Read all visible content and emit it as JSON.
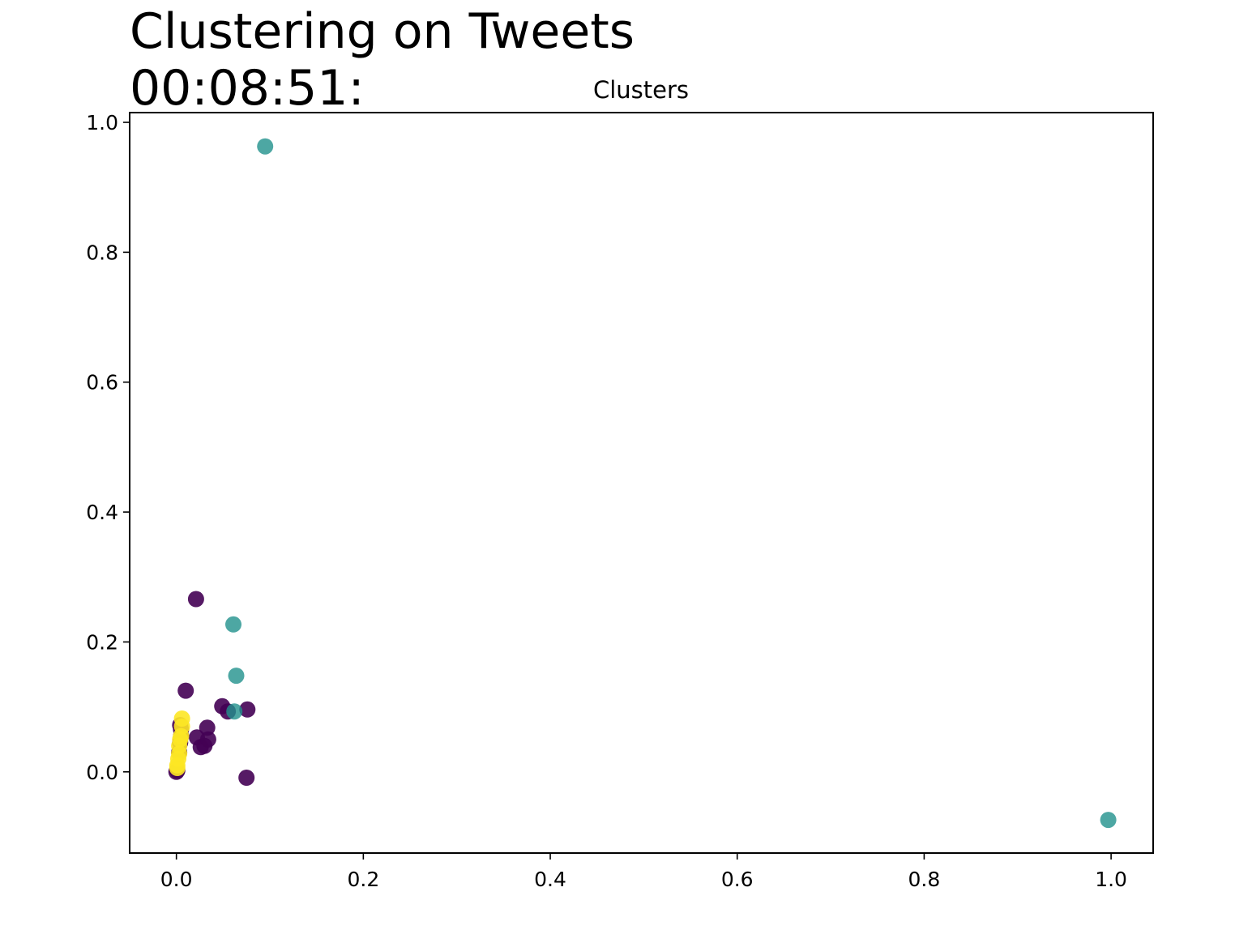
{
  "figure": {
    "title_line1": "Clustering on Tweets",
    "title_line2": "00:08:51:"
  },
  "chart_data": {
    "type": "scatter",
    "title": "Clusters",
    "xlabel": "",
    "ylabel": "",
    "xlim": [
      -0.05,
      1.045
    ],
    "ylim": [
      -0.125,
      1.015
    ],
    "xticks": [
      "0.0",
      "0.2",
      "0.4",
      "0.6",
      "0.8",
      "1.0"
    ],
    "yticks": [
      "0.0",
      "0.2",
      "0.4",
      "0.6",
      "0.8",
      "1.0"
    ],
    "grid": false,
    "legend": "none",
    "series": [
      {
        "color": "#440154",
        "points": [
          [
            0.0,
            0.0
          ],
          [
            0.001,
            0.002
          ],
          [
            0.003,
            0.03
          ],
          [
            0.004,
            0.045
          ],
          [
            0.005,
            0.055
          ],
          [
            0.005,
            0.065
          ],
          [
            0.004,
            0.072
          ],
          [
            0.01,
            0.125
          ],
          [
            0.021,
            0.266
          ],
          [
            0.022,
            0.053
          ],
          [
            0.026,
            0.038
          ],
          [
            0.03,
            0.04
          ],
          [
            0.034,
            0.05
          ],
          [
            0.033,
            0.068
          ],
          [
            0.049,
            0.101
          ],
          [
            0.055,
            0.093
          ],
          [
            0.076,
            0.096
          ],
          [
            0.075,
            -0.009
          ]
        ]
      },
      {
        "color": "#21918c",
        "points": [
          [
            0.095,
            0.963
          ],
          [
            0.061,
            0.227
          ],
          [
            0.064,
            0.148
          ],
          [
            0.062,
            0.093
          ],
          [
            0.997,
            -0.074
          ]
        ]
      },
      {
        "color": "#fde725",
        "points": [
          [
            0.001,
            0.006
          ],
          [
            0.001,
            0.01
          ],
          [
            0.002,
            0.02
          ],
          [
            0.003,
            0.028
          ],
          [
            0.003,
            0.04
          ],
          [
            0.004,
            0.05
          ],
          [
            0.005,
            0.055
          ],
          [
            0.006,
            0.07
          ],
          [
            0.006,
            0.082
          ]
        ]
      }
    ]
  }
}
